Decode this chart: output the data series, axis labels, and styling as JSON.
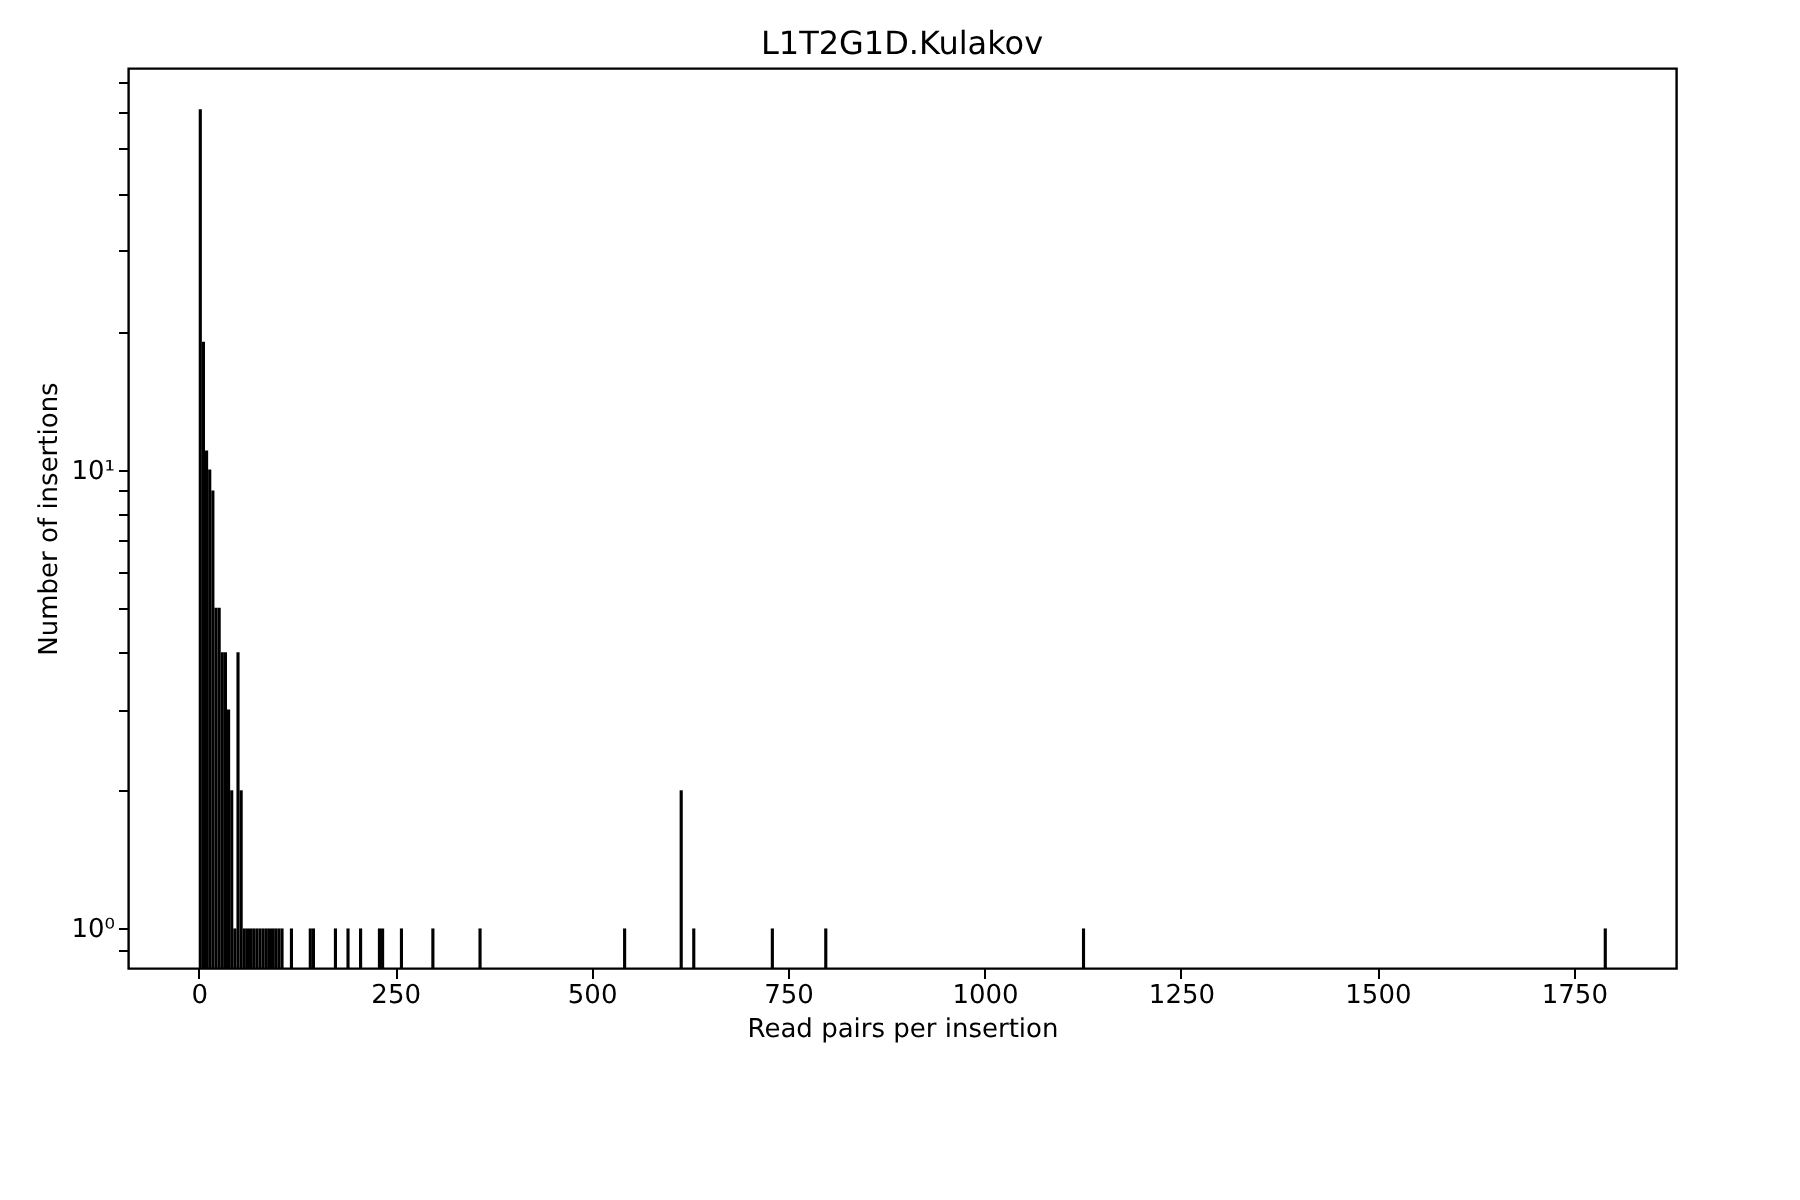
{
  "chart_data": {
    "type": "histogram",
    "title": "L1T2G1D.Kulakov",
    "xlabel": "Read pairs per insertion",
    "ylabel": "Number of insertions",
    "color": "#000000",
    "log": "y",
    "grid": false,
    "bins": [
      0,
      4,
      8,
      12,
      16,
      20,
      24,
      28,
      32,
      36,
      40,
      44,
      48,
      52,
      56,
      60,
      64,
      68,
      72,
      76,
      80,
      84,
      88,
      92,
      96,
      100,
      104,
      108,
      112,
      116,
      120,
      124,
      128,
      132,
      136,
      140,
      144,
      148,
      152,
      156,
      160,
      164,
      168,
      172,
      176,
      180,
      184,
      188,
      192,
      196,
      200,
      204,
      208,
      212,
      216,
      220,
      224,
      228,
      232,
      236,
      240,
      244,
      248,
      252,
      256,
      260,
      264,
      268,
      272,
      276,
      280,
      284,
      288,
      292,
      296,
      300,
      304,
      308,
      312,
      316,
      320,
      324,
      328,
      332,
      336,
      340,
      344,
      348,
      352,
      356,
      360,
      364,
      368,
      372,
      376,
      380,
      384,
      388,
      392,
      396,
      400,
      404,
      408,
      412,
      416,
      420,
      424,
      428,
      432,
      436,
      440,
      444,
      448,
      452,
      456,
      460,
      464,
      468,
      472,
      476,
      480,
      484,
      488,
      492,
      496,
      500,
      504,
      508,
      512,
      516,
      520,
      524,
      528,
      532,
      536,
      540,
      544,
      548,
      552,
      556,
      560,
      564,
      568,
      572,
      576,
      580,
      584,
      588,
      592,
      596,
      600,
      604,
      608,
      612,
      616,
      620,
      624,
      628,
      632,
      636,
      640,
      644,
      648,
      652,
      656,
      660,
      664,
      668,
      672,
      676,
      680,
      684,
      688,
      692,
      696,
      700,
      704,
      708,
      712,
      716,
      720,
      724,
      728,
      732,
      736,
      740,
      744,
      748,
      752,
      756,
      760,
      764,
      768,
      772,
      776,
      780,
      784,
      788,
      792,
      796,
      800,
      804,
      808,
      812,
      816,
      820,
      824,
      828,
      832,
      836,
      840,
      844,
      848,
      852,
      856,
      860,
      864,
      868,
      872,
      876,
      880,
      884,
      888,
      892,
      896,
      900,
      904,
      908,
      912,
      916,
      920,
      924,
      928,
      932,
      936,
      940,
      944,
      948,
      952,
      956,
      960,
      964,
      968,
      972,
      976,
      980,
      984,
      988,
      992,
      996,
      1000,
      1004,
      1008,
      1012,
      1016,
      1020,
      1024,
      1028,
      1032,
      1036,
      1040,
      1044,
      1048,
      1052,
      1056,
      1060,
      1064,
      1068,
      1072,
      1076,
      1080,
      1084,
      1088,
      1092,
      1096,
      1100,
      1104,
      1108,
      1112,
      1116,
      1120,
      1124,
      1128,
      1132,
      1136,
      1140,
      1144,
      1148,
      1152,
      1156,
      1160,
      1164,
      1168,
      1172,
      1176,
      1180,
      1184,
      1188,
      1192,
      1196,
      1200,
      1204,
      1208,
      1212,
      1216,
      1220,
      1224,
      1228,
      1232,
      1236,
      1240,
      1244,
      1248,
      1252,
      1256,
      1260,
      1264,
      1268,
      1272,
      1276,
      1280,
      1284,
      1288,
      1292,
      1296,
      1300,
      1304,
      1308,
      1312,
      1316,
      1320,
      1324,
      1328,
      1332,
      1336,
      1340,
      1344,
      1348,
      1352,
      1356,
      1360,
      1364,
      1368,
      1372,
      1376,
      1380,
      1384,
      1388,
      1392,
      1396,
      1400,
      1404,
      1408,
      1412,
      1416,
      1420,
      1424,
      1428,
      1432,
      1436,
      1440,
      1444,
      1448,
      1452,
      1456,
      1460,
      1464,
      1468,
      1472,
      1476,
      1480,
      1484,
      1488,
      1492,
      1496,
      1500,
      1504,
      1508,
      1512,
      1516,
      1520,
      1524,
      1528,
      1532,
      1536,
      1540,
      1544,
      1548,
      1552,
      1556,
      1560,
      1564,
      1568,
      1572,
      1576,
      1580,
      1584,
      1588,
      1592,
      1596,
      1600,
      1604,
      1608,
      1612,
      1616,
      1620,
      1624,
      1628,
      1632,
      1636,
      1640,
      1644,
      1648,
      1652,
      1656,
      1660,
      1664,
      1668,
      1672,
      1676,
      1680,
      1684,
      1688,
      1692,
      1696,
      1700,
      1704,
      1708,
      1712,
      1716,
      1720,
      1724,
      1728,
      1732,
      1736,
      1740,
      1744,
      1748,
      1752,
      1756,
      1760,
      1764,
      1768,
      1772,
      1776,
      1780,
      1784,
      1788,
      1792
    ],
    "values": [
      61,
      19,
      11,
      10,
      9,
      5,
      5,
      4,
      4,
      3,
      2,
      1,
      4,
      2,
      1,
      1,
      1,
      1,
      1,
      1,
      1,
      1,
      1,
      1,
      1,
      1,
      1,
      null,
      null,
      1,
      null,
      null,
      null,
      null,
      null,
      1,
      1,
      null,
      null,
      null,
      null,
      null,
      null,
      1,
      null,
      null,
      null,
      1,
      null,
      null,
      null,
      1,
      null,
      null,
      null,
      null,
      null,
      1,
      1,
      null,
      null,
      null,
      null,
      null,
      1,
      null,
      null,
      null,
      null,
      null,
      null,
      null,
      null,
      null,
      1,
      null,
      null,
      null,
      null,
      null,
      null,
      null,
      null,
      null,
      null,
      null,
      null,
      null,
      null,
      1,
      null,
      null,
      null,
      null,
      null,
      null,
      null,
      null,
      null,
      null,
      null,
      null,
      null,
      null,
      null,
      null,
      null,
      null,
      null,
      null,
      null,
      null,
      null,
      null,
      null,
      null,
      null,
      null,
      null,
      null,
      null,
      null,
      null,
      null,
      null,
      null,
      null,
      null,
      null,
      null,
      null,
      null,
      null,
      null,
      null,
      1,
      null,
      null,
      null,
      null,
      null,
      null,
      null,
      null,
      null,
      null,
      null,
      null,
      null,
      null,
      null,
      null,
      null,
      2,
      null,
      null,
      null,
      1,
      null,
      null,
      null,
      null,
      null,
      null,
      null,
      null,
      null,
      null,
      null,
      null,
      null,
      null,
      null,
      null,
      null,
      null,
      null,
      null,
      null,
      null,
      null,
      null,
      1,
      null,
      null,
      null,
      null,
      null,
      null,
      null,
      null,
      null,
      null,
      null,
      null,
      null,
      null,
      null,
      null,
      1,
      null,
      null,
      null,
      null,
      null,
      null,
      null,
      null,
      null,
      null,
      null,
      null,
      null,
      null,
      null,
      null,
      null,
      null,
      null,
      null,
      null,
      null,
      null,
      null,
      null,
      null,
      null,
      null,
      null,
      null,
      null,
      null,
      null,
      null,
      null,
      null,
      null,
      null,
      null,
      null,
      null,
      null,
      null,
      null,
      null,
      null,
      null,
      null,
      null,
      null,
      null,
      null,
      null,
      null,
      null,
      null,
      null,
      null,
      null,
      null,
      null,
      null,
      null,
      null,
      null,
      null,
      null,
      null,
      null,
      null,
      null,
      null,
      null,
      null,
      null,
      null,
      null,
      null,
      null,
      null,
      null,
      1,
      null,
      null,
      null,
      null,
      null,
      null,
      null,
      null,
      null,
      null,
      null,
      null,
      null,
      null,
      null,
      null,
      null,
      null,
      null,
      null,
      null,
      null,
      null,
      null,
      null,
      null,
      null,
      null,
      null,
      null,
      null,
      null,
      null,
      null,
      null,
      null,
      null,
      null,
      null,
      null,
      null,
      null,
      null,
      null,
      null,
      null,
      null,
      null,
      null,
      null,
      null,
      null,
      null,
      null,
      null,
      null,
      null,
      null,
      null,
      null,
      null,
      null,
      null,
      null,
      null,
      null,
      null,
      null,
      null,
      null,
      null,
      null,
      null,
      null,
      null,
      null,
      null,
      null,
      null,
      null,
      null,
      null,
      null,
      null,
      null,
      null,
      null,
      null,
      null,
      null,
      null,
      null,
      null,
      null,
      null,
      null,
      null,
      null,
      null,
      null,
      null,
      null,
      null,
      null,
      null,
      null,
      null,
      null,
      null,
      null,
      null,
      null,
      null,
      null,
      null,
      null,
      null,
      null,
      null,
      null,
      null,
      null,
      null,
      null,
      null,
      null,
      null,
      null,
      null,
      null,
      null,
      null,
      null,
      null,
      null,
      null,
      null,
      null,
      null,
      null,
      null,
      null,
      null,
      null,
      null,
      null,
      null,
      null,
      null,
      null,
      null,
      null,
      null,
      null,
      null,
      null,
      null,
      null,
      null,
      null,
      null,
      null,
      null,
      null,
      null,
      1
    ],
    "xlim": [
      -90,
      1880
    ],
    "xticks": [
      0,
      250,
      500,
      750,
      1000,
      1250,
      1500,
      1750
    ],
    "ylim": [
      0.82,
      75
    ],
    "yticks": [
      {
        "value": 0.9,
        "label": null
      },
      {
        "value": 1,
        "label": "10⁰"
      },
      {
        "value": 2,
        "label": null
      },
      {
        "value": 3,
        "label": null
      },
      {
        "value": 4,
        "label": null
      },
      {
        "value": 5,
        "label": null
      },
      {
        "value": 6,
        "label": null
      },
      {
        "value": 7,
        "label": null
      },
      {
        "value": 8,
        "label": null
      },
      {
        "value": 9,
        "label": null
      },
      {
        "value": 10,
        "label": "10¹"
      },
      {
        "value": 20,
        "label": null
      },
      {
        "value": 30,
        "label": null
      },
      {
        "value": 40,
        "label": null
      },
      {
        "value": 50,
        "label": null
      },
      {
        "value": 60,
        "label": null
      },
      {
        "value": 70,
        "label": null
      }
    ]
  }
}
